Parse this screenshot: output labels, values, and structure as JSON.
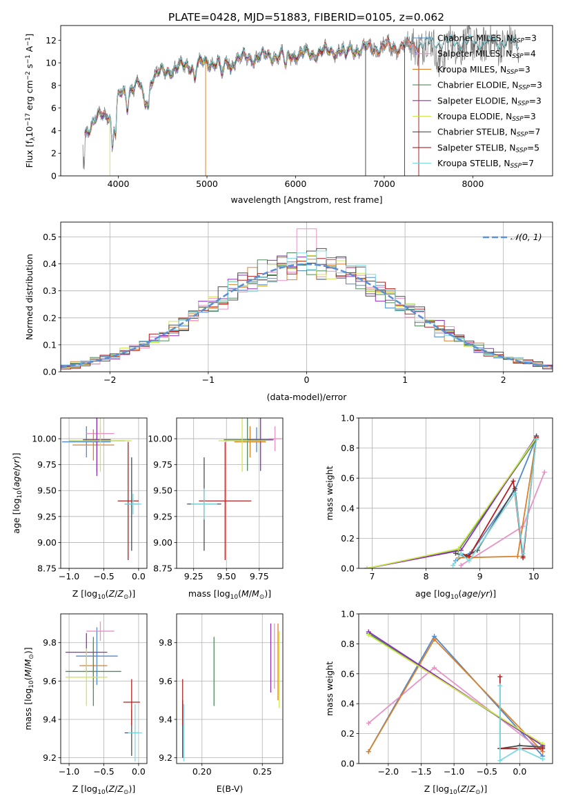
{
  "figure": {
    "title": "PLATE=0428, MJD=51883, FIBERID=0105, z=0.062"
  },
  "colors": {
    "Chabrier MILES": "#4e88cf",
    "Salpeter MILES": "#e891c6",
    "Kroupa MILES": "#d9812a",
    "Chabrier ELODIE": "#4e8a5a",
    "Salpeter ELODIE": "#8e2fb8",
    "Kroupa ELODIE": "#cde84a",
    "Chabrier STELIB": "#4a4a4a",
    "Salpeter STELIB": "#b51d1d",
    "Kroupa STELIB": "#7fd8e0",
    "data": "#808080",
    "normal": "#5b8fd6",
    "grid": "#b0b0b0"
  },
  "chart_data": [
    {
      "id": "spectrum",
      "type": "line",
      "xlabel": "wavelength [Angstrom, rest frame]",
      "ylabel_parts": [
        "Flux [f",
        "λ",
        "10",
        "−17",
        " erg cm",
        "−2",
        " s",
        "−1",
        " A",
        "−1",
        "]"
      ],
      "xlim": [
        3350,
        8900
      ],
      "ylim": [
        0,
        13.3
      ],
      "xticks": [
        4000,
        5000,
        6000,
        7000,
        8000
      ],
      "yticks": [
        0,
        2,
        4,
        6,
        8,
        10,
        12
      ],
      "grid": false,
      "legend_position": "upper-right",
      "series": [
        {
          "name": "Chabrier MILES",
          "nssp": "3"
        },
        {
          "name": "Salpeter MILES",
          "nssp": "4"
        },
        {
          "name": "Kroupa MILES",
          "nssp": "3"
        },
        {
          "name": "Chabrier ELODIE",
          "nssp": "3"
        },
        {
          "name": "Salpeter ELODIE",
          "nssp": "3"
        },
        {
          "name": "Kroupa ELODIE",
          "nssp": "3"
        },
        {
          "name": "Chabrier STELIB",
          "nssp": "7"
        },
        {
          "name": "Salpeter STELIB",
          "nssp": "5"
        },
        {
          "name": "Kroupa STELIB",
          "nssp": "7"
        }
      ],
      "continuum": [
        [
          3600,
          3.7
        ],
        [
          3700,
          4.6
        ],
        [
          3800,
          5.3
        ],
        [
          3900,
          5.6
        ],
        [
          4000,
          6.9
        ],
        [
          4100,
          7.6
        ],
        [
          4200,
          8.0
        ],
        [
          4300,
          8.2
        ],
        [
          4400,
          8.8
        ],
        [
          4500,
          9.2
        ],
        [
          4700,
          9.6
        ],
        [
          4900,
          9.9
        ],
        [
          5100,
          10.1
        ],
        [
          5300,
          10.3
        ],
        [
          5500,
          10.5
        ],
        [
          5700,
          10.6
        ],
        [
          5900,
          10.7
        ],
        [
          6100,
          10.8
        ],
        [
          6300,
          10.9
        ],
        [
          6500,
          11.1
        ],
        [
          6700,
          11.2
        ],
        [
          6900,
          11.3
        ],
        [
          7100,
          11.4
        ],
        [
          7300,
          11.6
        ],
        [
          7500,
          11.6
        ],
        [
          7700,
          11.7
        ],
        [
          8000,
          11.6
        ],
        [
          8300,
          11.7
        ],
        [
          8500,
          11.6
        ]
      ]
    },
    {
      "id": "residuals",
      "type": "histogram",
      "xlabel": "(data-model)/error",
      "ylabel": "Normed distribution",
      "xlim": [
        -2.5,
        2.5
      ],
      "ylim": [
        0,
        0.555
      ],
      "xticks": [
        -2,
        -1,
        0,
        1,
        2
      ],
      "yticks": [
        0.0,
        0.1,
        0.2,
        0.3,
        0.4,
        0.5
      ],
      "grid": true,
      "legend_position": "upper-right",
      "legend": [
        "𝒩(0, 1)"
      ],
      "bin_width": 0.1
    },
    {
      "id": "age-vs-Z",
      "type": "errorbar",
      "xlabel": "Z [log10(Z/Z⊙)]",
      "ylabel": "age  [log10(age/yr)]",
      "xlim": [
        -1.12,
        0.12
      ],
      "ylim": [
        8.75,
        10.2
      ],
      "xticks": [
        -1.0,
        -0.5,
        0.0
      ],
      "yticks": [
        8.75,
        9.0,
        9.25,
        9.5,
        9.75,
        10.0
      ],
      "grid": true,
      "points": [
        {
          "series": "Chabrier MILES",
          "x": -0.75,
          "y": 9.97,
          "xerr": 0.35,
          "yerr": 0.15
        },
        {
          "series": "Salpeter MILES",
          "x": -0.55,
          "y": 10.05,
          "xerr": 0.2,
          "yerr": 0.06
        },
        {
          "series": "Kroupa MILES",
          "x": -0.65,
          "y": 9.94,
          "xerr": 0.3,
          "yerr": 0.15
        },
        {
          "series": "Chabrier ELODIE",
          "x": -0.6,
          "y": 9.98,
          "xerr": 0.4,
          "yerr": 0.3
        },
        {
          "series": "Salpeter ELODIE",
          "x": -0.6,
          "y": 9.99,
          "xerr": 0.2,
          "yerr": 0.35
        },
        {
          "series": "Kroupa ELODIE",
          "x": -0.55,
          "y": 9.98,
          "xerr": 0.45,
          "yerr": 0.3
        },
        {
          "series": "Chabrier STELIB",
          "x": -0.1,
          "y": 9.37,
          "xerr": 0.1,
          "yerr": 0.45
        },
        {
          "series": "Salpeter STELIB",
          "x": -0.15,
          "y": 9.4,
          "xerr": 0.15,
          "yerr": 0.57
        },
        {
          "series": "Kroupa STELIB",
          "x": -0.08,
          "y": 9.37,
          "xerr": 0.12,
          "yerr": 0.1
        }
      ]
    },
    {
      "id": "age-vs-mass",
      "type": "errorbar",
      "xlabel": "mass [log10(M/M⊙)]",
      "ylabel": "",
      "xlim": [
        9.12,
        9.93
      ],
      "ylim": [
        8.75,
        10.2
      ],
      "xticks": [
        9.25,
        9.5,
        9.75
      ],
      "yticks": [
        8.75,
        9.0,
        9.25,
        9.5,
        9.75,
        10.0
      ],
      "grid": true,
      "points": [
        {
          "series": "Chabrier MILES",
          "x": 9.73,
          "y": 9.99,
          "xerr": 0.12,
          "yerr": 0.12
        },
        {
          "series": "Salpeter MILES",
          "x": 9.87,
          "y": 10.0,
          "xerr": 0.05,
          "yerr": 0.12
        },
        {
          "series": "Kroupa MILES",
          "x": 9.68,
          "y": 9.97,
          "xerr": 0.12,
          "yerr": 0.15
        },
        {
          "series": "Chabrier ELODIE",
          "x": 9.66,
          "y": 9.99,
          "xerr": 0.18,
          "yerr": 0.3
        },
        {
          "series": "Salpeter ELODIE",
          "x": 9.76,
          "y": 9.99,
          "xerr": 0.1,
          "yerr": 0.3
        },
        {
          "series": "Kroupa ELODIE",
          "x": 9.62,
          "y": 9.98,
          "xerr": 0.18,
          "yerr": 0.3
        },
        {
          "series": "Chabrier STELIB",
          "x": 9.33,
          "y": 9.37,
          "xerr": 0.13,
          "yerr": 0.45
        },
        {
          "series": "Salpeter STELIB",
          "x": 9.49,
          "y": 9.4,
          "xerr": 0.2,
          "yerr": 0.57
        },
        {
          "series": "Kroupa STELIB",
          "x": 9.33,
          "y": 9.37,
          "xerr": 0.1,
          "yerr": 0.15
        }
      ]
    },
    {
      "id": "mass-weight-vs-age",
      "type": "line",
      "xlabel": "age  [log10(age/yr)]",
      "ylabel": "mass weight",
      "xlim": [
        6.75,
        10.35
      ],
      "ylim": [
        0,
        1.0
      ],
      "xticks": [
        7,
        8,
        9,
        10
      ],
      "yticks": [
        0.0,
        0.2,
        0.4,
        0.6,
        0.8,
        1.0
      ],
      "grid": true,
      "series": [
        {
          "name": "Chabrier MILES",
          "points": [
            [
              8.55,
              0.05
            ],
            [
              8.85,
              0.11
            ],
            [
              9.65,
              0.52
            ],
            [
              10.05,
              0.87
            ]
          ]
        },
        {
          "name": "Salpeter MILES",
          "points": [
            [
              8.65,
              0.02
            ],
            [
              9.8,
              0.28
            ],
            [
              10.2,
              0.64
            ]
          ]
        },
        {
          "name": "Kroupa MILES",
          "points": [
            [
              8.6,
              0.07
            ],
            [
              9.7,
              0.08
            ],
            [
              10.05,
              0.86
            ]
          ]
        },
        {
          "name": "Chabrier ELODIE",
          "points": [
            [
              6.9,
              0.0
            ],
            [
              8.6,
              0.12
            ],
            [
              10.05,
              0.86
            ]
          ]
        },
        {
          "name": "Salpeter ELODIE",
          "points": [
            [
              6.9,
              0.0
            ],
            [
              8.65,
              0.12
            ],
            [
              10.05,
              0.88
            ]
          ]
        },
        {
          "name": "Kroupa ELODIE",
          "points": [
            [
              6.9,
              0.0
            ],
            [
              8.6,
              0.13
            ],
            [
              10.05,
              0.87
            ]
          ]
        },
        {
          "name": "Chabrier STELIB",
          "points": [
            [
              8.55,
              0.1
            ],
            [
              8.75,
              0.08
            ],
            [
              8.95,
              0.12
            ],
            [
              9.65,
              0.53
            ],
            [
              9.8,
              0.08
            ],
            [
              10.05,
              0.88
            ]
          ]
        },
        {
          "name": "Salpeter STELIB",
          "points": [
            [
              8.65,
              0.1
            ],
            [
              8.8,
              0.08
            ],
            [
              9.62,
              0.58
            ],
            [
              9.8,
              0.07
            ],
            [
              10.05,
              0.87
            ]
          ]
        },
        {
          "name": "Kroupa STELIB",
          "points": [
            [
              8.5,
              0.02
            ],
            [
              8.65,
              0.1
            ],
            [
              8.8,
              0.05
            ],
            [
              9.65,
              0.5
            ],
            [
              9.8,
              0.1
            ],
            [
              10.05,
              0.86
            ]
          ]
        }
      ]
    },
    {
      "id": "mass-vs-Z",
      "type": "errorbar",
      "xlabel": "Z [log10(Z/Z⊙)]",
      "ylabel": "mass [log10(M/M⊙)]",
      "xlim": [
        -1.12,
        0.12
      ],
      "ylim": [
        9.17,
        9.95
      ],
      "xticks": [
        -1.0,
        -0.5,
        0.0
      ],
      "yticks": [
        9.2,
        9.4,
        9.6,
        9.8
      ],
      "grid": true,
      "points": [
        {
          "series": "Chabrier MILES",
          "x": -0.6,
          "y": 9.73,
          "xerr": 0.3,
          "yerr": 0.15
        },
        {
          "series": "Salpeter MILES",
          "x": -0.55,
          "y": 9.86,
          "xerr": 0.2,
          "yerr": 0.05
        },
        {
          "series": "Kroupa MILES",
          "x": -0.65,
          "y": 9.68,
          "xerr": 0.2,
          "yerr": 0.12
        },
        {
          "series": "Chabrier ELODIE",
          "x": -0.65,
          "y": 9.65,
          "xerr": 0.4,
          "yerr": 0.18
        },
        {
          "series": "Salpeter ELODIE",
          "x": -0.75,
          "y": 9.75,
          "xerr": 0.3,
          "yerr": 0.1
        },
        {
          "series": "Kroupa ELODIE",
          "x": -0.75,
          "y": 9.62,
          "xerr": 0.3,
          "yerr": 0.15
        },
        {
          "series": "Chabrier STELIB",
          "x": -0.1,
          "y": 9.33,
          "xerr": 0.1,
          "yerr": 0.12
        },
        {
          "series": "Salpeter STELIB",
          "x": -0.1,
          "y": 9.49,
          "xerr": 0.12,
          "yerr": 0.12
        },
        {
          "series": "Kroupa STELIB",
          "x": -0.05,
          "y": 9.33,
          "xerr": 0.1,
          "yerr": 0.15
        }
      ]
    },
    {
      "id": "mass-vs-EBV",
      "type": "errorbar",
      "xlabel": "E(B-V)",
      "ylabel": "",
      "xlim": [
        0.179,
        0.267
      ],
      "ylim": [
        9.17,
        9.95
      ],
      "xticks": [
        0.2,
        0.25
      ],
      "yticks": [
        9.2,
        9.4,
        9.6,
        9.8
      ],
      "grid": true,
      "points": [
        {
          "series": "Chabrier MILES",
          "x": 0.184,
          "y": 9.35,
          "yerr": 0.15
        },
        {
          "series": "Salpeter MILES",
          "x": 0.26,
          "y": 9.73,
          "yerr": 0.17
        },
        {
          "series": "Kroupa MILES",
          "x": 0.263,
          "y": 9.7,
          "yerr": 0.2
        },
        {
          "series": "Chabrier ELODIE",
          "x": 0.21,
          "y": 9.65,
          "yerr": 0.18
        },
        {
          "series": "Salpeter ELODIE",
          "x": 0.257,
          "y": 9.72,
          "yerr": 0.18
        },
        {
          "series": "Kroupa ELODIE",
          "x": 0.264,
          "y": 9.66,
          "yerr": 0.2
        },
        {
          "series": "Chabrier STELIB",
          "x": 0.184,
          "y": 9.35,
          "yerr": 0.15
        },
        {
          "series": "Salpeter STELIB",
          "x": 0.184,
          "y": 9.49,
          "yerr": 0.12
        },
        {
          "series": "Kroupa STELIB",
          "x": 0.185,
          "y": 9.33,
          "yerr": 0.15
        }
      ]
    },
    {
      "id": "mass-weight-vs-Z",
      "type": "line",
      "xlabel": "Z [log10(Z/Z⊙)]",
      "ylabel": "mass weight",
      "xlim": [
        -2.45,
        0.5
      ],
      "ylim": [
        0,
        1.0
      ],
      "xticks": [
        -2.0,
        -1.5,
        -1.0,
        -0.5,
        0.0
      ],
      "yticks": [
        0.0,
        0.2,
        0.4,
        0.6,
        0.8,
        1.0
      ],
      "grid": true,
      "series": [
        {
          "name": "Chabrier MILES",
          "points": [
            [
              -2.3,
              0.08
            ],
            [
              -1.3,
              0.85
            ],
            [
              0.35,
              0.05
            ]
          ]
        },
        {
          "name": "Salpeter MILES",
          "points": [
            [
              -2.3,
              0.27
            ],
            [
              -1.3,
              0.64
            ],
            [
              0.35,
              0.08
            ]
          ]
        },
        {
          "name": "Kroupa MILES",
          "points": [
            [
              -2.3,
              0.08
            ],
            [
              -1.3,
              0.83
            ],
            [
              0.35,
              0.08
            ]
          ]
        },
        {
          "name": "Chabrier ELODIE",
          "points": [
            [
              -2.3,
              0.87
            ],
            [
              0.35,
              0.12
            ]
          ]
        },
        {
          "name": "Salpeter ELODIE",
          "points": [
            [
              -2.3,
              0.88
            ],
            [
              0.35,
              0.12
            ]
          ]
        },
        {
          "name": "Kroupa ELODIE",
          "points": [
            [
              -2.3,
              0.86
            ],
            [
              0.35,
              0.13
            ]
          ]
        },
        {
          "name": "Chabrier STELIB",
          "points": [
            [
              -0.3,
              0.1
            ],
            [
              0.0,
              0.12
            ],
            [
              0.35,
              0.11
            ]
          ]
        },
        {
          "name": "Salpeter STELIB",
          "points": [
            [
              -0.3,
              0.58
            ],
            [
              -0.3,
              0.1
            ],
            [
              0.35,
              0.1
            ]
          ]
        },
        {
          "name": "Kroupa STELIB",
          "points": [
            [
              -0.3,
              0.52
            ],
            [
              -0.3,
              0.02
            ],
            [
              0.0,
              0.1
            ],
            [
              0.35,
              0.03
            ]
          ]
        }
      ]
    }
  ]
}
